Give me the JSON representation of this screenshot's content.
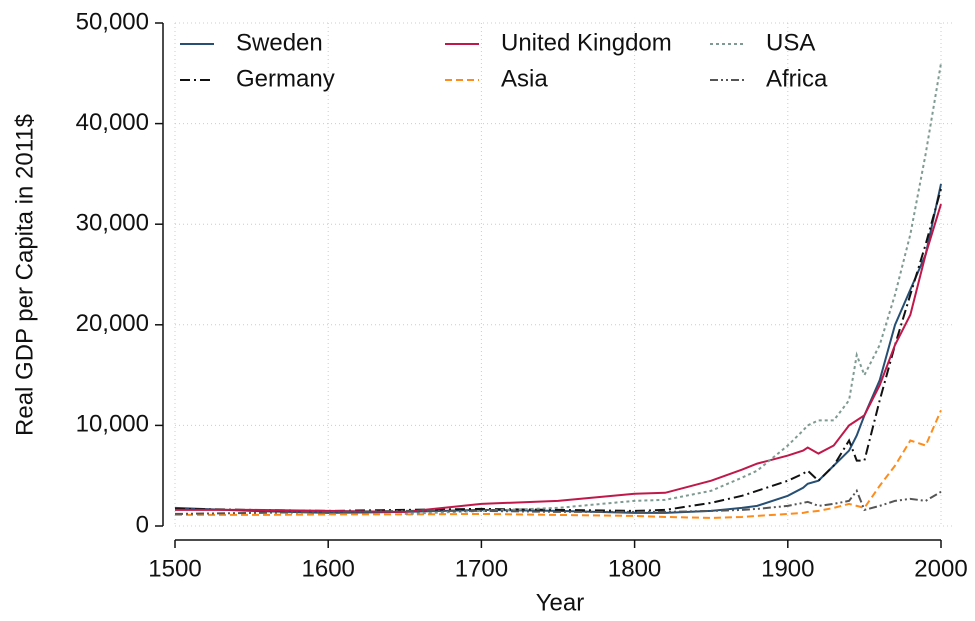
{
  "chart_data": {
    "type": "line",
    "xlabel": "Year",
    "ylabel": "Real GDP per Capita in 2011$",
    "x": [
      1500,
      1550,
      1600,
      1650,
      1700,
      1750,
      1800,
      1820,
      1850,
      1870,
      1880,
      1900,
      1910,
      1913,
      1920,
      1930,
      1940,
      1945,
      1950,
      1960,
      1970,
      1980,
      1990,
      2000
    ],
    "series": [
      {
        "name": "Sweden",
        "color": "#264f73",
        "dash": "",
        "values": [
          1800,
          1500,
          1300,
          1400,
          1600,
          1500,
          1300,
          1300,
          1500,
          1800,
          2000,
          3000,
          3800,
          4200,
          4500,
          6000,
          7500,
          9000,
          11000,
          14500,
          20000,
          23500,
          27000,
          34000
        ]
      },
      {
        "name": "Germany",
        "color": "#111111",
        "dash": "10 4 2 4",
        "values": [
          1700,
          1600,
          1500,
          1600,
          1700,
          1600,
          1500,
          1600,
          2300,
          3000,
          3500,
          4500,
          5200,
          5500,
          4500,
          6000,
          8500,
          6500,
          6500,
          12500,
          18000,
          23000,
          28000,
          33500
        ]
      },
      {
        "name": "United Kingdom",
        "color": "#c0184a",
        "dash": "",
        "values": [
          1600,
          1600,
          1500,
          1400,
          2200,
          2500,
          3200,
          3300,
          4500,
          5600,
          6200,
          7000,
          7500,
          7800,
          7200,
          8000,
          10000,
          10500,
          11000,
          14000,
          18000,
          21000,
          27000,
          32000
        ]
      },
      {
        "name": "Asia",
        "color": "#ff8c1a",
        "dash": "7 4",
        "values": [
          1100,
          1100,
          1150,
          1150,
          1200,
          1100,
          1000,
          900,
          800,
          900,
          1000,
          1200,
          1300,
          1400,
          1500,
          1800,
          2200,
          2000,
          1800,
          4000,
          6000,
          8500,
          8000,
          11500
        ]
      },
      {
        "name": "USA",
        "color": "#7f9a92",
        "dash": "3 3",
        "values": [
          null,
          null,
          null,
          1200,
          1500,
          1800,
          2500,
          2600,
          3500,
          4800,
          5500,
          8000,
          9500,
          10000,
          10500,
          10500,
          12500,
          17000,
          15000,
          18000,
          23000,
          29000,
          37000,
          46000
        ]
      },
      {
        "name": "Africa",
        "color": "#555555",
        "dash": "8 3 2 3 2 3",
        "values": [
          1200,
          1300,
          1400,
          1500,
          1500,
          1400,
          1400,
          1400,
          1500,
          1600,
          1700,
          2000,
          2300,
          2400,
          2000,
          2200,
          2500,
          3500,
          1600,
          2000,
          2500,
          2700,
          2500,
          3400
        ]
      }
    ],
    "xlim": [
      1500,
      2000
    ],
    "xticks": [
      1500,
      1600,
      1700,
      1800,
      1900,
      2000
    ],
    "ylim": [
      0,
      50000
    ],
    "yticks": [
      0,
      {
        "value": 10000,
        "label": "10,000"
      },
      {
        "value": 20000,
        "label": "20,000"
      },
      {
        "value": 30000,
        "label": "30,000"
      },
      {
        "value": 40000,
        "label": "40,000"
      },
      {
        "value": 50000,
        "label": "50,000"
      }
    ],
    "grid": true,
    "legend": "top"
  }
}
